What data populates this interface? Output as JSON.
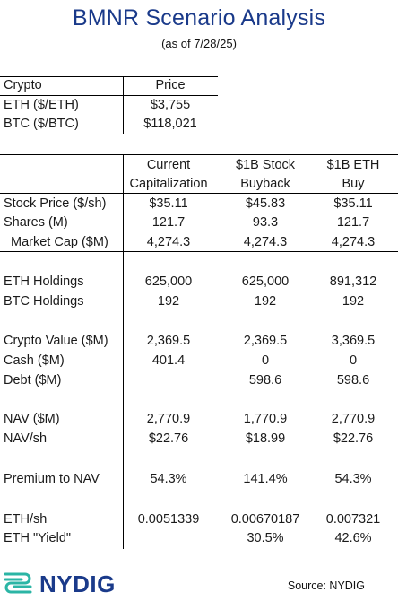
{
  "header": {
    "title": "BMNR Scenario Analysis",
    "subtitle": "(as of 7/28/25)"
  },
  "price_table": {
    "headers": [
      "Crypto",
      "Price"
    ],
    "rows": [
      [
        "ETH ($/ETH)",
        "$3,755"
      ],
      [
        "BTC ($/BTC)",
        "$118,021"
      ]
    ]
  },
  "scenario_table": {
    "columns": [
      [
        "Current",
        "Capitalization"
      ],
      [
        "$1B Stock",
        "Buyback"
      ],
      [
        "$1B ETH",
        "Buy"
      ]
    ],
    "rows": [
      {
        "label": "Stock Price ($/sh)",
        "values": [
          "$35.11",
          "$45.83",
          "$35.11"
        ]
      },
      {
        "label": "Shares (M)",
        "values": [
          "121.7",
          "93.3",
          "121.7"
        ]
      },
      {
        "label": "Market Cap ($M)",
        "values": [
          "4,274.3",
          "4,274.3",
          "4,274.3"
        ]
      },
      {
        "label": "ETH Holdings",
        "values": [
          "625,000",
          "625,000",
          "891,312"
        ]
      },
      {
        "label": "BTC Holdings",
        "values": [
          "192",
          "192",
          "192"
        ]
      },
      {
        "label": "Crypto Value ($M)",
        "values": [
          "2,369.5",
          "2,369.5",
          "3,369.5"
        ]
      },
      {
        "label": "Cash ($M)",
        "values": [
          "401.4",
          "0",
          "0"
        ]
      },
      {
        "label": "Debt ($M)",
        "values": [
          "",
          "598.6",
          "598.6"
        ]
      },
      {
        "label": "NAV ($M)",
        "values": [
          "2,770.9",
          "1,770.9",
          "2,770.9"
        ]
      },
      {
        "label": "NAV/sh",
        "values": [
          "$22.76",
          "$18.99",
          "$22.76"
        ]
      },
      {
        "label": "Premium to NAV",
        "values": [
          "54.3%",
          "141.4%",
          "54.3%"
        ]
      },
      {
        "label": "ETH/sh",
        "values": [
          "0.0051339",
          "0.00670187",
          "0.007321"
        ]
      },
      {
        "label": "ETH \"Yield\"",
        "values": [
          "",
          "30.5%",
          "42.6%"
        ]
      }
    ]
  },
  "footer": {
    "brand": "NYDIG",
    "logo_icon": "nydig-logo-icon",
    "brand_color": "#1a3a8a",
    "logo_color": "#2bb5a5",
    "source": "Source: NYDIG"
  }
}
